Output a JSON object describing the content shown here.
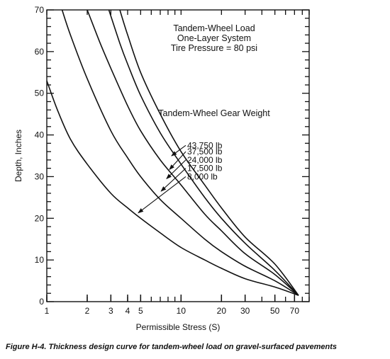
{
  "caption": "Figure H-4.  Thickness design curve for tandem-wheel load on gravel-surfaced pavements",
  "chart_data": {
    "type": "line",
    "title_lines": [
      "Tandem-Wheel Load",
      "One-Layer System",
      "Tire Pressure = 80 psi"
    ],
    "legend_title": "Tandem-Wheel Gear Weight",
    "xlabel": "Permissible Stress (S)",
    "ylabel": "Depth, Inches",
    "x_scale": "log",
    "xlim": [
      1,
      90
    ],
    "ylim": [
      0,
      70
    ],
    "x_ticks": [
      1,
      2,
      3,
      4,
      5,
      10,
      20,
      30,
      50,
      70
    ],
    "y_ticks": [
      0,
      10,
      20,
      30,
      40,
      50,
      60,
      70
    ],
    "grid": false,
    "series": [
      {
        "name": "8,000 lb",
        "x": [
          1,
          1.2,
          1.5,
          2,
          3,
          4,
          5,
          7,
          10,
          15,
          20,
          30,
          50,
          75
        ],
        "y": [
          53,
          46,
          39,
          33,
          26,
          22.5,
          20,
          16.5,
          13,
          10,
          8,
          5.5,
          3.5,
          1.5
        ]
      },
      {
        "name": "17,500 lb",
        "x": [
          1.3,
          1.5,
          2,
          3,
          4,
          5,
          7,
          10,
          15,
          20,
          30,
          50,
          75
        ],
        "y": [
          70,
          64,
          53.5,
          41,
          34.5,
          30,
          24.5,
          20,
          15,
          12,
          8.5,
          5,
          1.5
        ]
      },
      {
        "name": "24,000 lb",
        "x": [
          2,
          2.5,
          3,
          4,
          5,
          7,
          10,
          15,
          20,
          30,
          50,
          75
        ],
        "y": [
          70,
          62,
          56,
          47,
          41,
          34,
          28,
          21,
          17,
          11.5,
          6.5,
          1.5
        ]
      },
      {
        "name": "37,500 lb",
        "x": [
          2.9,
          3.5,
          4,
          5,
          7,
          10,
          15,
          20,
          30,
          50,
          75
        ],
        "y": [
          70,
          62,
          57,
          49.5,
          40.5,
          33,
          25,
          20,
          14,
          7.5,
          1.5
        ]
      },
      {
        "name": "43,750 lb",
        "x": [
          3.5,
          4,
          5,
          7,
          10,
          15,
          20,
          30,
          50,
          75
        ],
        "y": [
          70,
          64,
          55,
          45,
          36,
          28,
          22.5,
          15.5,
          9,
          1.5
        ]
      }
    ]
  }
}
